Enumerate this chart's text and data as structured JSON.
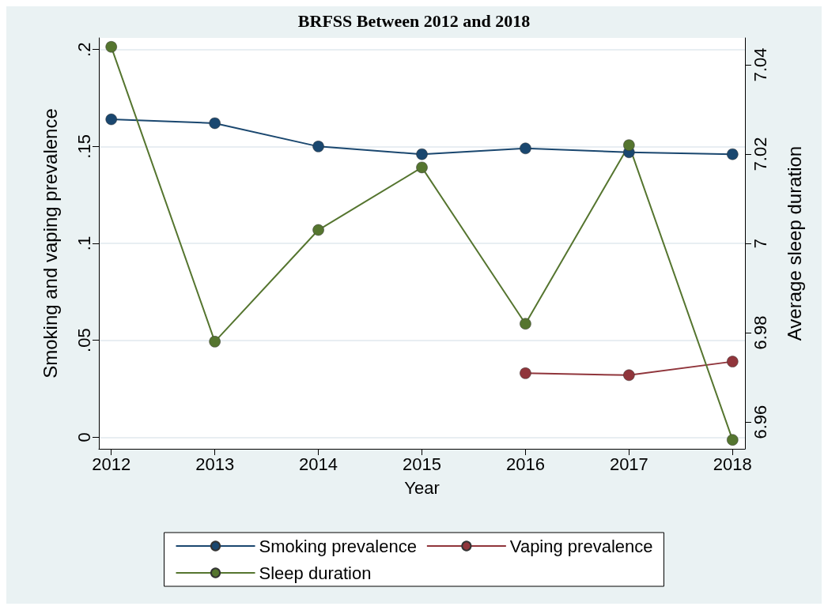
{
  "chart_data": {
    "type": "line",
    "title": "BRFSS Between 2012 and 2018",
    "xlabel": "Year",
    "ylabel": "Smoking and vaping prevalence",
    "y2label": "Average sleep duration",
    "x": [
      2012,
      2013,
      2014,
      2015,
      2016,
      2017,
      2018
    ],
    "xlim": [
      2011.88,
      2018.12
    ],
    "xticks": [
      2012,
      2013,
      2014,
      2015,
      2016,
      2017,
      2018
    ],
    "ylim": [
      -0.006,
      0.206
    ],
    "yticks": [
      {
        "value": 0,
        "label": "0"
      },
      {
        "value": 0.05,
        "label": ".05"
      },
      {
        "value": 0.1,
        "label": ".1"
      },
      {
        "value": 0.15,
        "label": ".15"
      },
      {
        "value": 0.2,
        "label": ".2"
      }
    ],
    "y2lim": [
      6.954,
      7.046
    ],
    "y2ticks": [
      6.96,
      6.98,
      7,
      7.02,
      7.04
    ],
    "series": [
      {
        "name": "Smoking prevalence",
        "color": "#1a476f",
        "values": [
          0.164,
          0.162,
          0.15,
          0.146,
          0.149,
          0.147,
          0.146
        ]
      },
      {
        "name": "Vaping prevalence",
        "color": "#90353b",
        "values": [
          null,
          null,
          null,
          null,
          0.033,
          0.032,
          0.039
        ]
      },
      {
        "name": "Sleep duration",
        "color": "#55752f",
        "axis": "y2",
        "values": [
          7.044,
          6.978,
          7.003,
          7.017,
          6.982,
          7.022,
          6.956
        ]
      }
    ],
    "grid": "y",
    "legend": "bottom",
    "marker": "circle",
    "line_style": "solid"
  }
}
